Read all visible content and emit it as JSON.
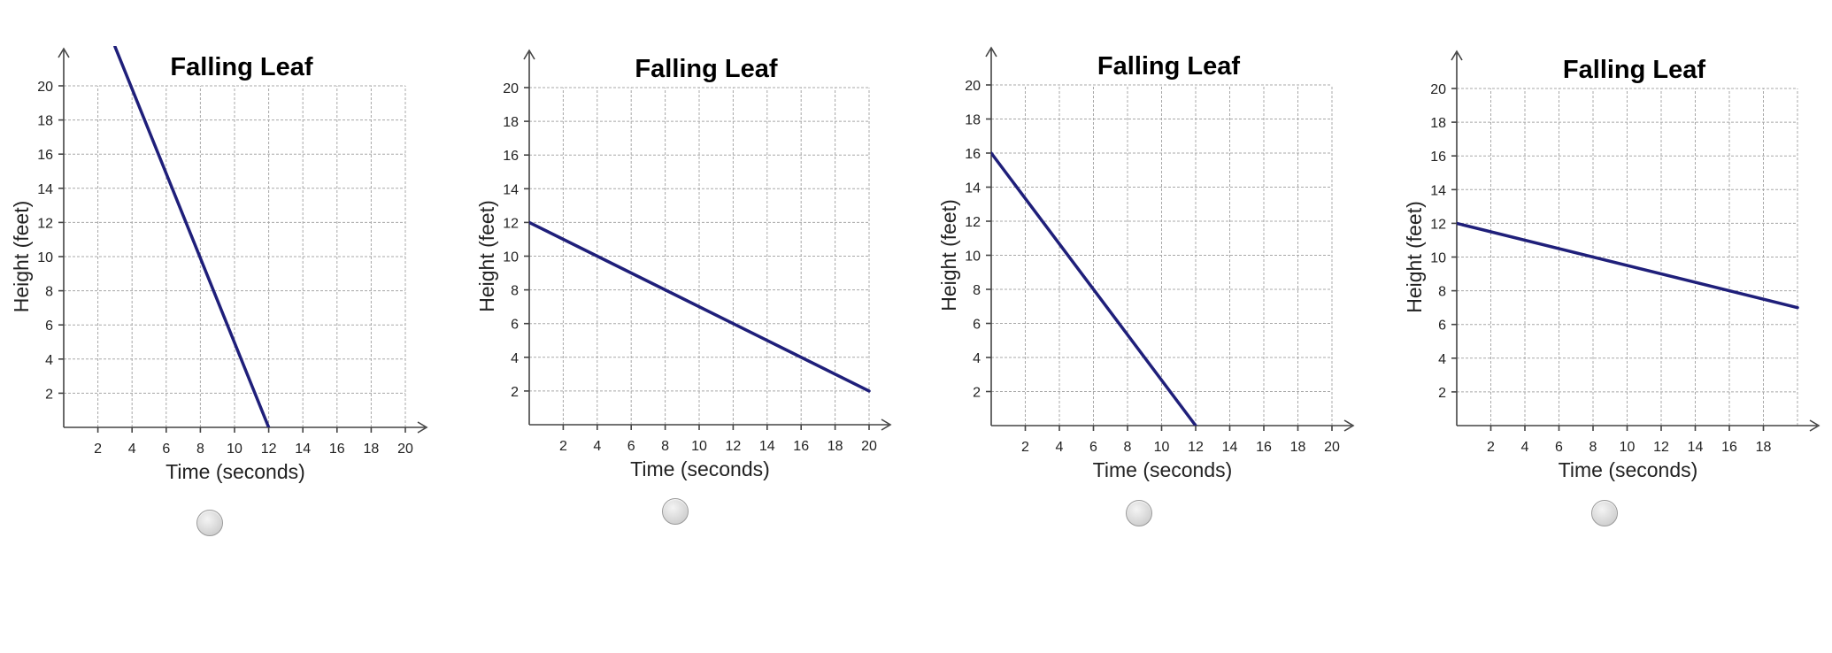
{
  "chart_data": [
    {
      "type": "line",
      "title": "Falling Leaf",
      "xlabel": "Time (seconds)",
      "ylabel": "Height (feet)",
      "xlim": [
        0,
        20
      ],
      "ylim": [
        0,
        20
      ],
      "x_ticks": [
        2,
        4,
        6,
        8,
        10,
        12,
        14,
        16,
        18,
        20
      ],
      "y_ticks": [
        2,
        4,
        6,
        8,
        10,
        12,
        14,
        16,
        18,
        20
      ],
      "grid": true,
      "series": [
        {
          "x": [
            3,
            12
          ],
          "y": [
            22.3,
            0
          ]
        }
      ]
    },
    {
      "type": "line",
      "title": "Falling Leaf",
      "xlabel": "Time (seconds)",
      "ylabel": "Height (feet)",
      "xlim": [
        0,
        20
      ],
      "ylim": [
        0,
        20
      ],
      "x_ticks": [
        2,
        4,
        6,
        8,
        10,
        12,
        14,
        16,
        18,
        20
      ],
      "y_ticks": [
        2,
        4,
        6,
        8,
        10,
        12,
        14,
        16,
        18,
        20
      ],
      "grid": true,
      "series": [
        {
          "x": [
            0,
            20
          ],
          "y": [
            12,
            2
          ]
        }
      ]
    },
    {
      "type": "line",
      "title": "Falling Leaf",
      "xlabel": "Time (seconds)",
      "ylabel": "Height (feet)",
      "xlim": [
        0,
        20
      ],
      "ylim": [
        0,
        20
      ],
      "x_ticks": [
        2,
        4,
        6,
        8,
        10,
        12,
        14,
        16,
        18,
        20
      ],
      "y_ticks": [
        2,
        4,
        6,
        8,
        10,
        12,
        14,
        16,
        18,
        20
      ],
      "grid": true,
      "series": [
        {
          "x": [
            0,
            12
          ],
          "y": [
            16,
            0
          ]
        }
      ]
    },
    {
      "type": "line",
      "title": "Falling Leaf",
      "xlabel": "Time (seconds)",
      "ylabel": "Height (feet)",
      "xlim": [
        0,
        20
      ],
      "ylim": [
        0,
        20
      ],
      "x_ticks": [
        2,
        4,
        6,
        8,
        10,
        12,
        14,
        16,
        18
      ],
      "y_ticks": [
        2,
        4,
        6,
        8,
        10,
        12,
        14,
        16,
        18,
        20
      ],
      "grid": true,
      "series": [
        {
          "x": [
            0,
            20
          ],
          "y": [
            12,
            7
          ]
        }
      ]
    }
  ],
  "colors": {
    "line": "#1f1f7a",
    "grid": "#a8a8a8",
    "axis": "#444444"
  }
}
